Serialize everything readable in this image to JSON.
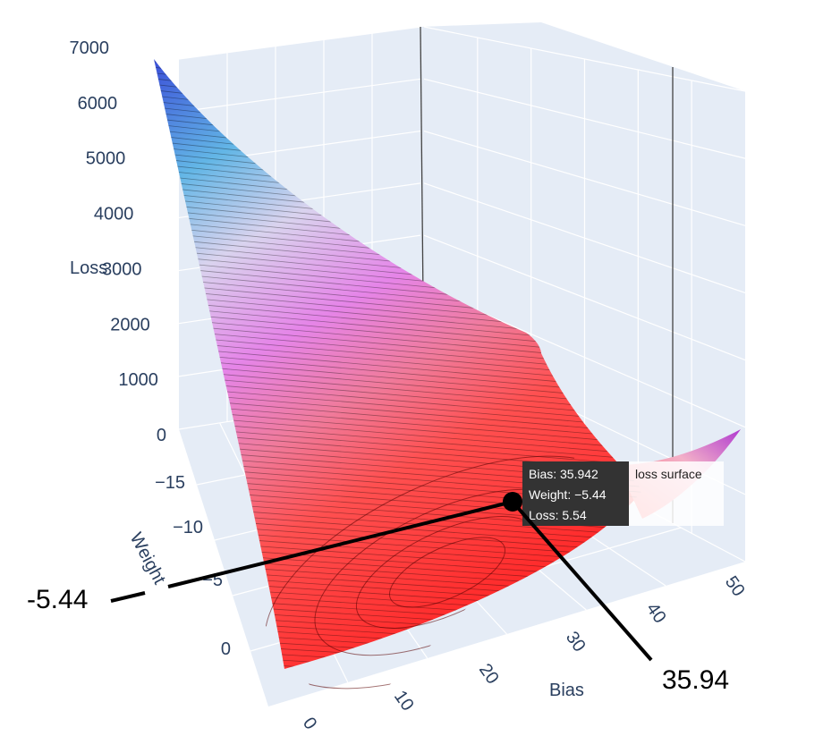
{
  "chart_data": {
    "type": "surface",
    "x_axis": {
      "label": "Bias",
      "ticks": [
        "0",
        "10",
        "20",
        "30",
        "40",
        "50"
      ],
      "range": [
        0,
        52
      ]
    },
    "y_axis": {
      "label": "Weight",
      "ticks": [
        "−15",
        "−10",
        "−5",
        "0"
      ],
      "range": [
        -18,
        2
      ]
    },
    "z_axis": {
      "label": "Loss",
      "ticks": [
        "0",
        "1000",
        "2000",
        "3000",
        "4000",
        "5000",
        "6000",
        "7000"
      ],
      "range": [
        0,
        7000
      ]
    },
    "series": [
      {
        "name": "loss surface",
        "colorscale": [
          "#ff3030",
          "#e060e0",
          "#5070e0"
        ]
      }
    ],
    "surface_corner_values": [
      {
        "bias": 0,
        "weight": -18,
        "loss": 6750
      },
      {
        "bias": 0,
        "weight": 2,
        "loss": 40
      },
      {
        "bias": 52,
        "weight": 2,
        "loss": 1200
      },
      {
        "bias": 52,
        "weight": -18,
        "loss": 600
      }
    ],
    "highlight_point": {
      "bias": 35.942,
      "weight": -5.44,
      "loss": 5.54
    },
    "hover_label": {
      "bias_text": "Bias: 35.942",
      "weight_text": "Weight: −5.44",
      "loss_text": "Loss: 5.54",
      "trace_name": "loss surface"
    },
    "annotations": [
      {
        "target": "weight",
        "text": "-5.44"
      },
      {
        "target": "bias",
        "text": "35.94"
      }
    ],
    "grid": true,
    "background_color": "#e5ecf6",
    "grid_color": "#ffffff"
  }
}
